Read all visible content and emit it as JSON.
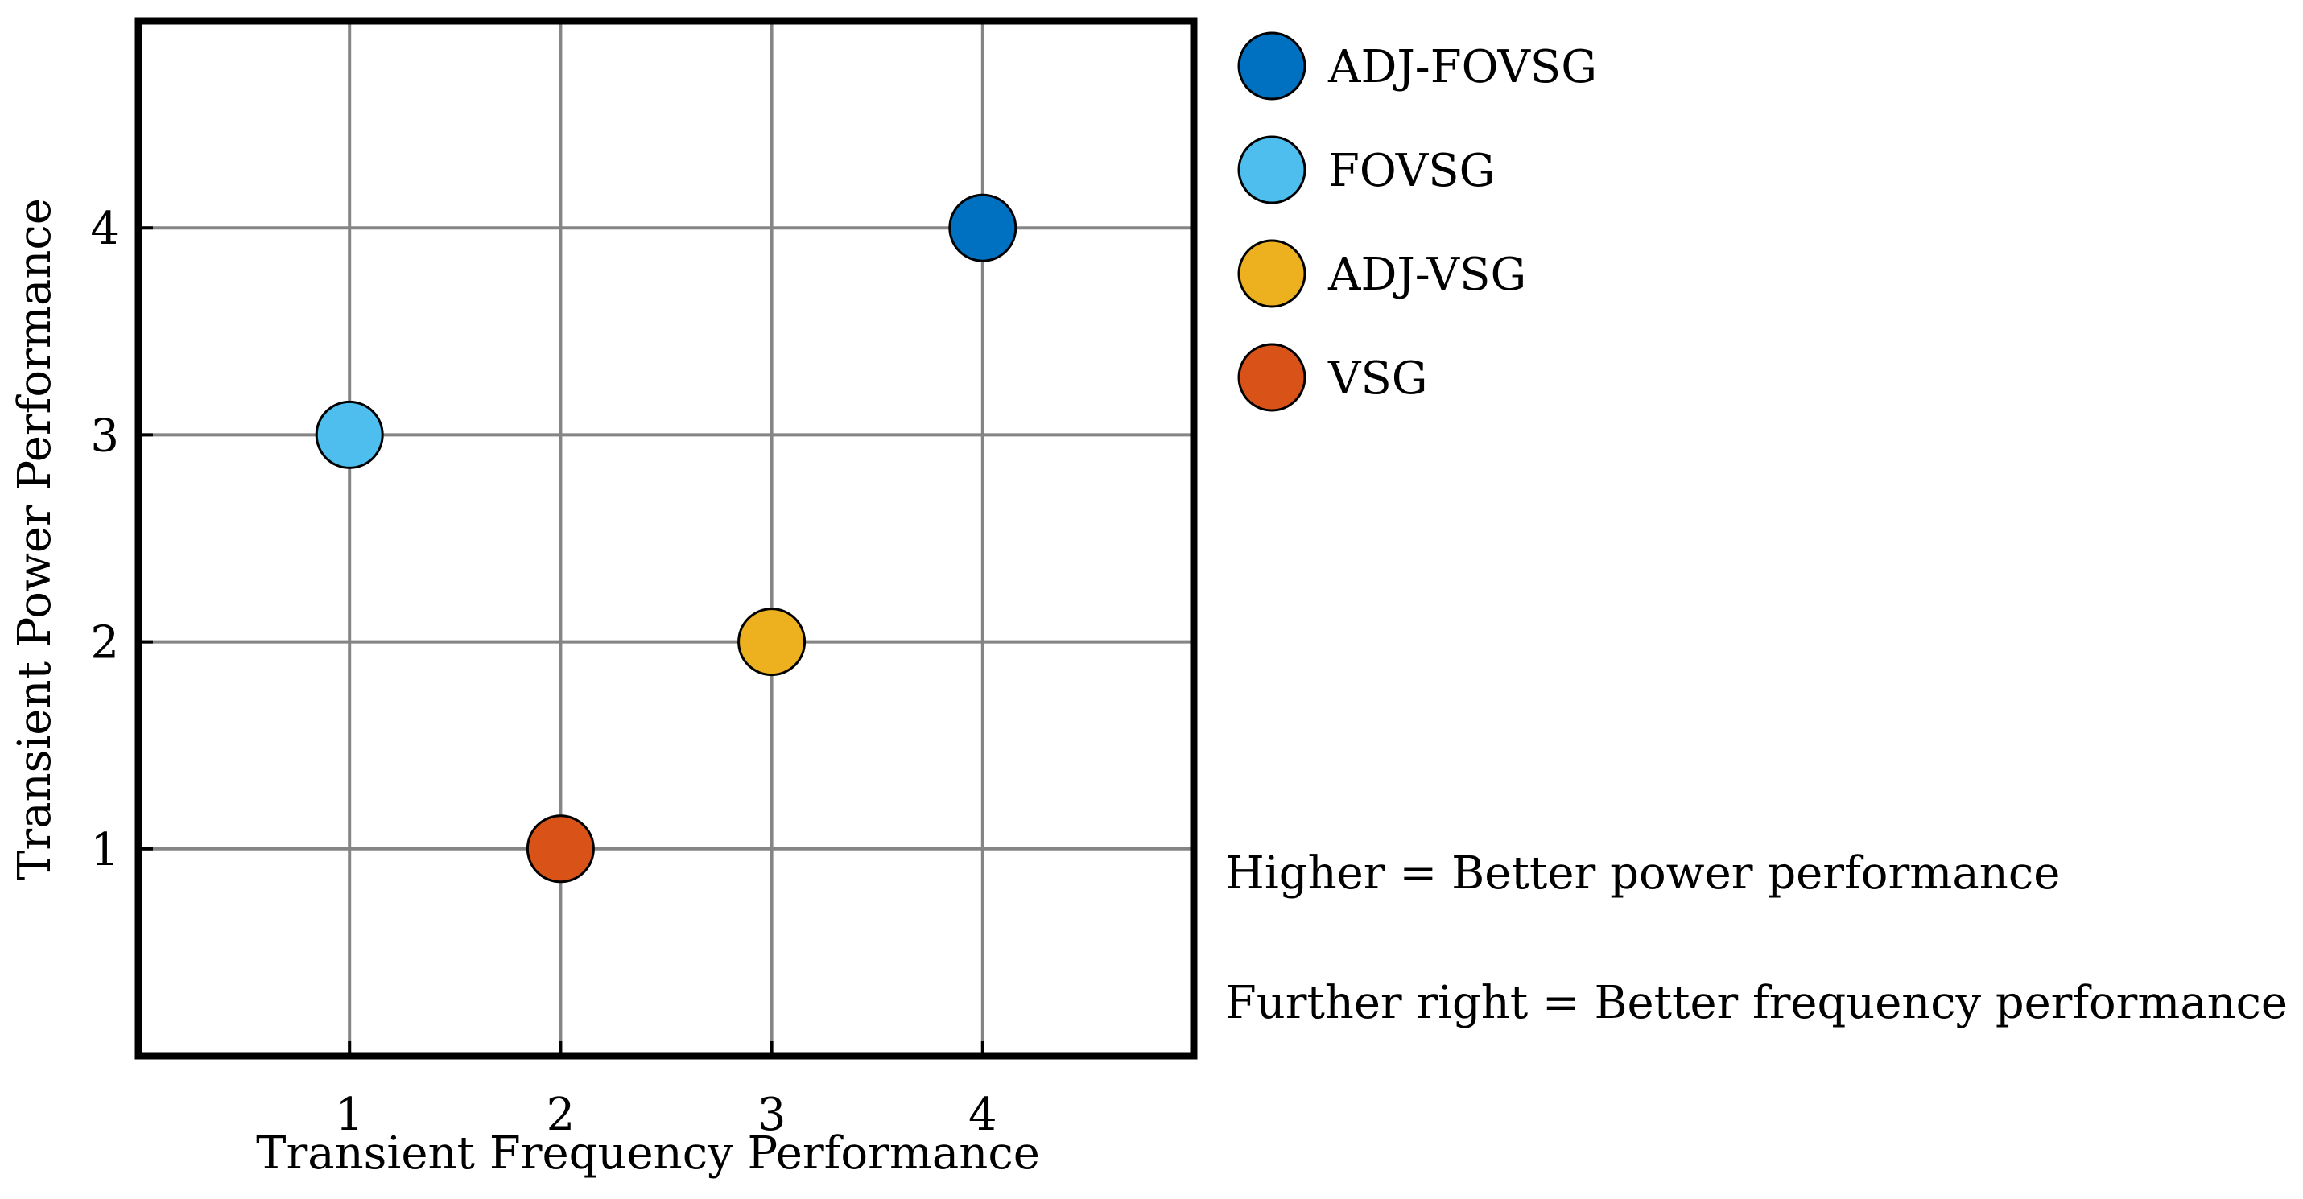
{
  "chart_data": {
    "type": "scatter",
    "title": "",
    "xlabel": "Transient  Frequency  Performance",
    "ylabel": "Transient  Power  Performance",
    "xlim": [
      0,
      5
    ],
    "ylim": [
      0,
      5
    ],
    "xticks": [
      "1",
      "2",
      "3",
      "4"
    ],
    "yticks": [
      "1",
      "2",
      "3",
      "4"
    ],
    "grid": true,
    "legend_position": "right",
    "series": [
      {
        "name": "ADJ-FOVSG",
        "color": "#0070C0",
        "x": 4,
        "y": 4
      },
      {
        "name": "FOVSG",
        "color": "#4DBEEE",
        "x": 1,
        "y": 3
      },
      {
        "name": "ADJ-VSG",
        "color": "#EDB120",
        "x": 3,
        "y": 2
      },
      {
        "name": "VSG",
        "color": "#D95319",
        "x": 2,
        "y": 1
      }
    ],
    "annotations": [
      "Higher = Better power performance",
      "Further right = Better frequency performance"
    ]
  }
}
